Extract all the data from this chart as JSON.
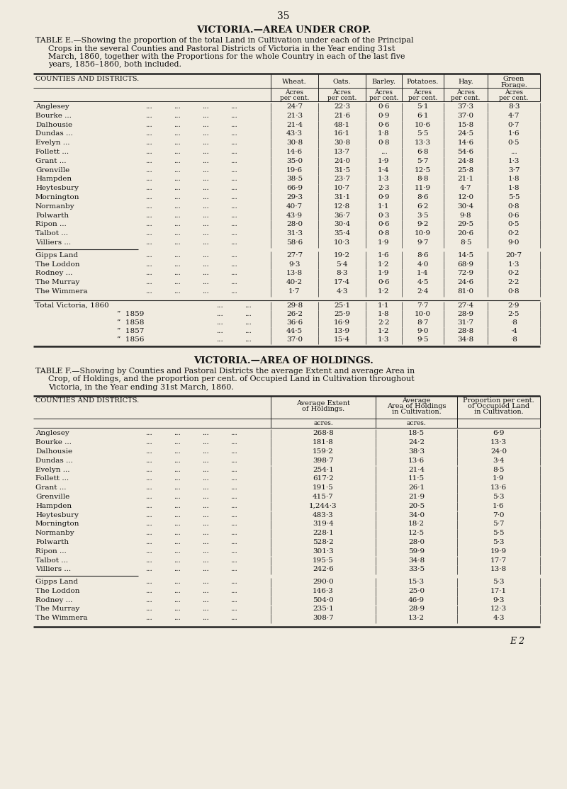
{
  "page_number": "35",
  "bg_color": "#f0ebe0",
  "table_e_title": "VICTORIA.—AREA UNDER CROP.",
  "table_e_subtitle_lines": [
    "TABLE E.—Showing the proportion of the total Land in Cultivation under each of the Principal",
    "Crops in the several Counties and Pastoral Districts of Victoria in the Year ending 31st",
    "March, 1860, together with the Proportions for the whole Country in each of the last five",
    "years, 1856–1860, both included."
  ],
  "table_e_col_headers": [
    "COUNTIES AND DISTRICTS.",
    "Wheat.",
    "Oats.",
    "Barley.",
    "Potatoes.",
    "Hay.",
    "Green\nForage."
  ],
  "table_e_sub_headers": [
    "",
    "Acres\nper cent.",
    "Acres\nper cent.",
    "Acres\nper cent.",
    "Acres\nper cent.",
    "Acres\nper cent.",
    "Acres\nper cent."
  ],
  "table_e_rows": [
    [
      "Anglesey",
      "24·7",
      "22·3",
      "0·6",
      "5·1",
      "37·3",
      "8·3"
    ],
    [
      "Bourke ...",
      "21·3",
      "21·6",
      "0·9",
      "6·1",
      "37·0",
      "4·7"
    ],
    [
      "Dalhousie",
      "21·4",
      "48·1",
      "0·6",
      "10·6",
      "15·8",
      "0·7"
    ],
    [
      "Dundas ...",
      "43·3",
      "16·1",
      "1·8",
      "5·5",
      "24·5",
      "1·6"
    ],
    [
      "Evelyn ...",
      "30·8",
      "30·8",
      "0·8",
      "13·3",
      "14·6",
      "0·5"
    ],
    [
      "Follett ...",
      "14·6",
      "13·7",
      "...",
      "6·8",
      "54·6",
      "..."
    ],
    [
      "Grant ...",
      "35·0",
      "24·0",
      "1·9",
      "5·7",
      "24·8",
      "1·3"
    ],
    [
      "Grenville",
      "19·6",
      "31·5",
      "1·4",
      "12·5",
      "25·8",
      "3·7"
    ],
    [
      "Hampden",
      "38·5",
      "23·7",
      "1·3",
      "8·8",
      "21·1",
      "1·8"
    ],
    [
      "Heytesbury",
      "66·9",
      "10·7",
      "2·3",
      "11·9",
      "4·7",
      "1·8"
    ],
    [
      "Mornington",
      "29·3",
      "31·1",
      "0·9",
      "8·6",
      "12·0",
      "5·5"
    ],
    [
      "Normanby",
      "40·7",
      "12·8",
      "1·1",
      "6·2",
      "30·4",
      "0·8"
    ],
    [
      "Polwarth",
      "43·9",
      "36·7",
      "0·3",
      "3·5",
      "9·8",
      "0·6"
    ],
    [
      "Ripon ...",
      "28·0",
      "30·4",
      "0·6",
      "9·2",
      "29·5",
      "0·5"
    ],
    [
      "Talbot ...",
      "31·3",
      "35·4",
      "0·8",
      "10·9",
      "20·6",
      "0·2"
    ],
    [
      "Villiers ...",
      "58·6",
      "10·3",
      "1·9",
      "9·7",
      "8·5",
      "9·0"
    ],
    [
      "Gipps Land",
      "27·7",
      "19·2",
      "1·6",
      "8·6",
      "14·5",
      "20·7"
    ],
    [
      "The Loddon",
      "9·3",
      "5·4",
      "1·2",
      "4·0",
      "68·9",
      "1·3"
    ],
    [
      "Rodney ...",
      "13·8",
      "8·3",
      "1·9",
      "1·4",
      "72·9",
      "0·2"
    ],
    [
      "The Murray",
      "40·2",
      "17·4",
      "0·6",
      "4·5",
      "24·6",
      "2·2"
    ],
    [
      "The Wimmera",
      "1·7",
      "4·3",
      "1·2",
      "2·4",
      "81·0",
      "0·8"
    ]
  ],
  "table_e_totals": [
    [
      "Total Victoria, 1860",
      "29·8",
      "25·1",
      "1·1",
      "7·7",
      "27·4",
      "2·9"
    ],
    [
      "”  1859",
      "26·2",
      "25·9",
      "1·8",
      "10·0",
      "28·9",
      "2·5"
    ],
    [
      "”  1858",
      "36·6",
      "16·9",
      "2·2",
      "8·7",
      "31·7",
      "·8"
    ],
    [
      "”  1857",
      "44·5",
      "13·9",
      "1·2",
      "9·0",
      "28·8",
      "·4"
    ],
    [
      "”  1856",
      "37·0",
      "15·4",
      "1·3",
      "9·5",
      "34·8",
      "·8"
    ]
  ],
  "table_f_title": "VICTORIA.—AREA OF HOLDINGS.",
  "table_f_subtitle_lines": [
    "TABLE F.—Showing by Counties and Pastoral Districts the average Extent and average Area in",
    "Crop, of Holdings, and the proportion per cent. of Occupied Land in Cultivation throughout",
    "Victoria, in the Year ending 31st March, 1860."
  ],
  "table_f_col_headers": [
    "COUNTIES AND DISTRICTS.",
    "Average Extent\nof Holdings.",
    "Average\nArea of Holdings\nin Cultivation.",
    "Proportion per cent.\nof Occupied Land\nin Cultivation."
  ],
  "table_f_sub_headers": [
    "",
    "acres.",
    "acres.",
    ""
  ],
  "table_f_rows": [
    [
      "Anglesey",
      "268·8",
      "18·5",
      "6·9"
    ],
    [
      "Bourke ...",
      "181·8",
      "24·2",
      "13·3"
    ],
    [
      "Dalhousie",
      "159·2",
      "38·3",
      "24·0"
    ],
    [
      "Dundas ...",
      "398·7",
      "13·6",
      "3·4"
    ],
    [
      "Evelyn ...",
      "254·1",
      "21·4",
      "8·5"
    ],
    [
      "Follett ...",
      "617·2",
      "11·5",
      "1·9"
    ],
    [
      "Grant ...",
      "191·5",
      "26·1",
      "13·6"
    ],
    [
      "Grenville",
      "415·7",
      "21·9",
      "5·3"
    ],
    [
      "Hampden",
      "1,244·3",
      "20·5",
      "1·6"
    ],
    [
      "Heytesbury",
      "483·3",
      "34·0",
      "7·0"
    ],
    [
      "Mornington",
      "319·4",
      "18·2",
      "5·7"
    ],
    [
      "Normanby",
      "228·1",
      "12·5",
      "5·5"
    ],
    [
      "Polwarth",
      "528·2",
      "28·0",
      "5·3"
    ],
    [
      "Ripon ...",
      "301·3",
      "59·9",
      "19·9"
    ],
    [
      "Talbot ...",
      "195·5",
      "34·8",
      "17·7"
    ],
    [
      "Villiers ...",
      "242·6",
      "33·5",
      "13·8"
    ],
    [
      "Gipps Land",
      "290·0",
      "15·3",
      "5·3"
    ],
    [
      "The Loddon",
      "146·3",
      "25·0",
      "17·1"
    ],
    [
      "Rodney ...",
      "504·0",
      "46·9",
      "9·3"
    ],
    [
      "The Murray",
      "235·1",
      "28·9",
      "12·3"
    ],
    [
      "The Wimmera",
      "308·7",
      "13·2",
      "4·3"
    ]
  ],
  "footer": "E 2"
}
